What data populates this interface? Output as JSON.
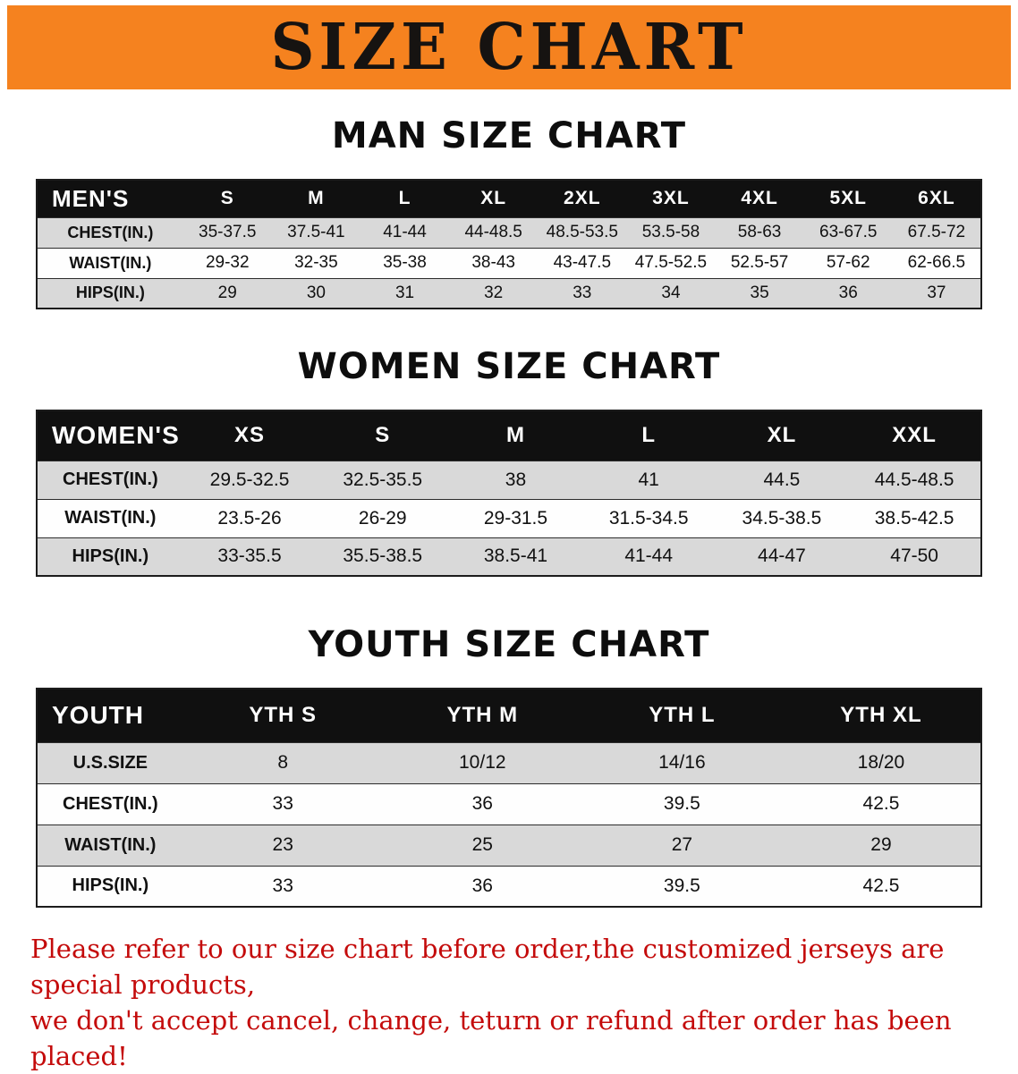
{
  "banner": {
    "title": "SIZE CHART",
    "bg_color": "#f5821f"
  },
  "sections": [
    {
      "id": "mens",
      "heading": "MAN SIZE CHART",
      "table": {
        "corner": "MEN'S",
        "columns": [
          "S",
          "M",
          "L",
          "XL",
          "2XL",
          "3XL",
          "4XL",
          "5XL",
          "6XL"
        ],
        "rows": [
          {
            "label": "CHEST(IN.)",
            "values": [
              "35-37.5",
              "37.5-41",
              "41-44",
              "44-48.5",
              "48.5-53.5",
              "53.5-58",
              "58-63",
              "63-67.5",
              "67.5-72"
            ]
          },
          {
            "label": "WAIST(IN.)",
            "values": [
              "29-32",
              "32-35",
              "35-38",
              "38-43",
              "43-47.5",
              "47.5-52.5",
              "52.5-57",
              "57-62",
              "62-66.5"
            ]
          },
          {
            "label": "HIPS(IN.)",
            "values": [
              "29",
              "30",
              "31",
              "32",
              "33",
              "34",
              "35",
              "36",
              "37"
            ]
          }
        ]
      }
    },
    {
      "id": "womens",
      "heading": "WOMEN SIZE CHART",
      "table": {
        "corner": "WOMEN'S",
        "columns": [
          "XS",
          "S",
          "M",
          "L",
          "XL",
          "XXL"
        ],
        "rows": [
          {
            "label": "CHEST(IN.)",
            "values": [
              "29.5-32.5",
              "32.5-35.5",
              "38",
              "41",
              "44.5",
              "44.5-48.5"
            ]
          },
          {
            "label": "WAIST(IN.)",
            "values": [
              "23.5-26",
              "26-29",
              "29-31.5",
              "31.5-34.5",
              "34.5-38.5",
              "38.5-42.5"
            ]
          },
          {
            "label": "HIPS(IN.)",
            "values": [
              "33-35.5",
              "35.5-38.5",
              "38.5-41",
              "41-44",
              "44-47",
              "47-50"
            ]
          }
        ]
      }
    },
    {
      "id": "youth",
      "heading": "YOUTH SIZE CHART",
      "table": {
        "corner": "YOUTH",
        "columns": [
          "YTH S",
          "YTH M",
          "YTH L",
          "YTH XL"
        ],
        "rows": [
          {
            "label": "U.S.SIZE",
            "values": [
              "8",
              "10/12",
              "14/16",
              "18/20"
            ]
          },
          {
            "label": "CHEST(IN.)",
            "values": [
              "33",
              "36",
              "39.5",
              "42.5"
            ]
          },
          {
            "label": "WAIST(IN.)",
            "values": [
              "23",
              "25",
              "27",
              "29"
            ]
          },
          {
            "label": "HIPS(IN.)",
            "values": [
              "33",
              "36",
              "39.5",
              "42.5"
            ]
          }
        ]
      }
    }
  ],
  "disclaimer": {
    "line1": "Please refer to our size chart before order,the customized jerseys are special products,",
    "line2": "we don't accept cancel, change, teturn or refund after order has been placed!"
  }
}
